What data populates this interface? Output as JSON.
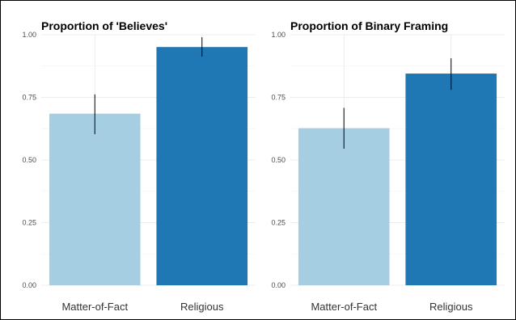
{
  "chart_data": [
    {
      "type": "bar",
      "title": "Proportion of 'Believes'",
      "xlabel": "",
      "ylabel": "",
      "categories": [
        "Matter-of-Fact",
        "Religious"
      ],
      "values": [
        0.685,
        0.951
      ],
      "error_low": [
        0.603,
        0.913
      ],
      "error_high": [
        0.762,
        0.99
      ],
      "ylim": [
        0,
        1
      ],
      "yticks": [
        0,
        0.25,
        0.5,
        0.75,
        1
      ],
      "ytick_labels": [
        "0.00",
        "0.25",
        "0.50",
        "0.75",
        "1.00"
      ],
      "colors": [
        "#a6cee3",
        "#1f78b4"
      ],
      "grid": true,
      "legend": "none"
    },
    {
      "type": "bar",
      "title": "Proportion of Binary Framing",
      "xlabel": "",
      "ylabel": "",
      "categories": [
        "Matter-of-Fact",
        "Religious"
      ],
      "values": [
        0.627,
        0.845
      ],
      "error_low": [
        0.545,
        0.78
      ],
      "error_high": [
        0.708,
        0.906
      ],
      "ylim": [
        0,
        1
      ],
      "yticks": [
        0,
        0.25,
        0.5,
        0.75,
        1
      ],
      "ytick_labels": [
        "0.00",
        "0.25",
        "0.50",
        "0.75",
        "1.00"
      ],
      "colors": [
        "#a6cee3",
        "#1f78b4"
      ],
      "grid": true,
      "legend": "none"
    }
  ]
}
